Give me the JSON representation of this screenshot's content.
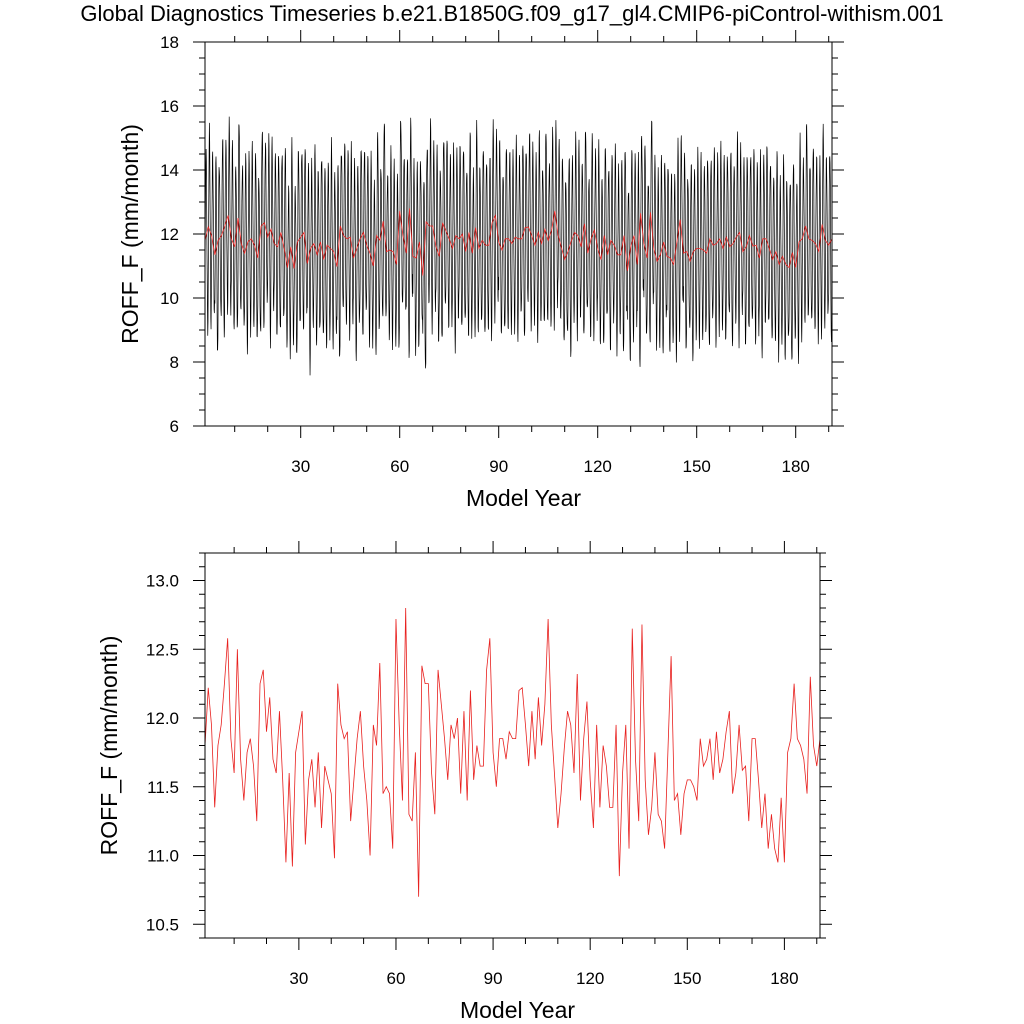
{
  "title": "Global Diagnostics Timeseries b.e21.B1850G.f09_g17_gl4.CMIP6-piControl-withism.001",
  "colors": {
    "monthly": "#000000",
    "annual": "#e8201e",
    "frame": "#000000",
    "background": "#ffffff"
  },
  "chart_data": [
    {
      "type": "line",
      "xlabel": "Model Year",
      "ylabel": "ROFF_F (mm/month)",
      "xlim": [
        1,
        191
      ],
      "ylim": [
        6,
        18
      ],
      "xticks": [
        30,
        60,
        90,
        120,
        150,
        180
      ],
      "xtick_labels": [
        "30",
        "60",
        "90",
        "120",
        "150",
        "180"
      ],
      "yticks": [
        6,
        8,
        10,
        12,
        14,
        16,
        18
      ],
      "ytick_labels": [
        "6",
        "8",
        "10",
        "12",
        "14",
        "16",
        "18"
      ],
      "grid": false,
      "legend": "none",
      "series": [
        {
          "kind": "monthly",
          "color": "#000000",
          "seasonal_amplitude": 2.8,
          "x_start": 1,
          "months_per_year": 12,
          "peak_month": 4
        },
        {
          "kind": "annual",
          "color": "#e8201e",
          "x_start": 1
        }
      ]
    },
    {
      "type": "line",
      "xlabel": "Model Year",
      "ylabel": "ROFF_F (mm/month)",
      "xlim": [
        1,
        191
      ],
      "ylim": [
        10.4,
        13.2
      ],
      "xticks": [
        30,
        60,
        90,
        120,
        150,
        180
      ],
      "xtick_labels": [
        "30",
        "60",
        "90",
        "120",
        "150",
        "180"
      ],
      "yticks": [
        10.5,
        11.0,
        11.5,
        12.0,
        12.5,
        13.0
      ],
      "ytick_labels": [
        "10.5",
        "11.0",
        "11.5",
        "12.0",
        "12.5",
        "13.0"
      ],
      "grid": false,
      "legend": "none",
      "series": [
        {
          "kind": "annual",
          "color": "#e8201e",
          "x_start": 1,
          "values": [
            11.8,
            12.22,
            11.95,
            11.35,
            11.8,
            11.95,
            12.25,
            12.58,
            11.85,
            11.6,
            12.5,
            11.7,
            11.4,
            11.75,
            11.85,
            11.65,
            11.25,
            12.25,
            12.35,
            11.9,
            12.15,
            11.7,
            11.6,
            12.05,
            11.55,
            10.95,
            11.6,
            10.92,
            11.75,
            11.9,
            12.05,
            11.08,
            11.55,
            11.7,
            11.35,
            11.75,
            11.2,
            11.65,
            11.55,
            11.45,
            10.98,
            12.25,
            11.95,
            11.85,
            11.9,
            11.25,
            11.55,
            11.85,
            12.05,
            11.65,
            11.4,
            11.0,
            11.95,
            11.8,
            12.4,
            11.45,
            11.5,
            11.45,
            11.05,
            12.72,
            11.95,
            11.4,
            12.8,
            11.3,
            11.25,
            11.75,
            10.7,
            12.38,
            12.25,
            12.25,
            11.6,
            11.3,
            12.35,
            12.1,
            11.85,
            11.55,
            11.95,
            11.85,
            12.0,
            11.45,
            12.05,
            11.4,
            12.2,
            11.55,
            11.8,
            11.65,
            11.65,
            12.35,
            12.58,
            11.75,
            11.5,
            11.85,
            11.85,
            11.7,
            11.9,
            11.85,
            11.85,
            12.2,
            12.22,
            11.95,
            11.65,
            12.05,
            11.7,
            12.15,
            11.8,
            12.1,
            12.72,
            11.95,
            11.58,
            11.2,
            11.45,
            11.78,
            12.05,
            11.95,
            11.6,
            12.32,
            11.4,
            11.85,
            12.12,
            11.55,
            11.2,
            11.95,
            11.35,
            11.8,
            11.65,
            11.35,
            11.35,
            11.95,
            10.85,
            11.6,
            11.95,
            11.05,
            12.65,
            11.7,
            11.25,
            12.68,
            11.55,
            11.15,
            11.35,
            11.75,
            11.3,
            11.25,
            11.05,
            11.75,
            12.45,
            11.4,
            11.45,
            11.15,
            11.45,
            11.55,
            11.55,
            11.5,
            11.4,
            11.85,
            11.65,
            11.7,
            11.85,
            11.55,
            11.9,
            11.6,
            11.7,
            11.9,
            12.05,
            11.45,
            11.6,
            11.95,
            11.62,
            11.65,
            11.25,
            11.85,
            11.85,
            11.55,
            11.2,
            11.45,
            11.05,
            11.3,
            11.05,
            10.95,
            11.42,
            10.95,
            11.75,
            11.85,
            12.25,
            11.85,
            11.8,
            11.7,
            11.45,
            12.3,
            11.8,
            11.65,
            11.85,
            11.55
          ]
        }
      ]
    }
  ]
}
